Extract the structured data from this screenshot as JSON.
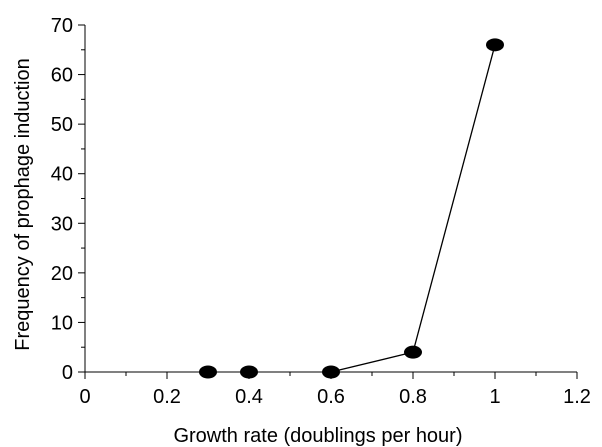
{
  "chart_data": {
    "type": "line",
    "title": "",
    "xlabel": "Growth rate (doublings per hour)",
    "ylabel": "Frequency of prophage induction",
    "xlim": [
      0,
      1.2
    ],
    "ylim": [
      0,
      70
    ],
    "x_ticks": [
      0,
      0.2,
      0.4,
      0.6,
      0.8,
      1.0,
      1.2
    ],
    "x_tick_labels": [
      "0",
      "0.2",
      "0.4",
      "0.6",
      "0.8",
      "1",
      "1.2"
    ],
    "y_ticks": [
      0,
      10,
      20,
      30,
      40,
      50,
      60,
      70
    ],
    "y_tick_labels": [
      "0",
      "10",
      "20",
      "30",
      "40",
      "50",
      "60",
      "70"
    ],
    "x_minor_step": 0.1,
    "y_minor_step": 5,
    "grid": false,
    "legend": "none",
    "marker": "filled-ellipse",
    "line_color": "#000000",
    "marker_color": "#000000",
    "series": [
      {
        "x": [
          0.3,
          0.4,
          0.6,
          0.8,
          1.0
        ],
        "y": [
          0,
          0,
          0,
          4,
          66
        ],
        "connected_from_index": 2
      }
    ]
  }
}
